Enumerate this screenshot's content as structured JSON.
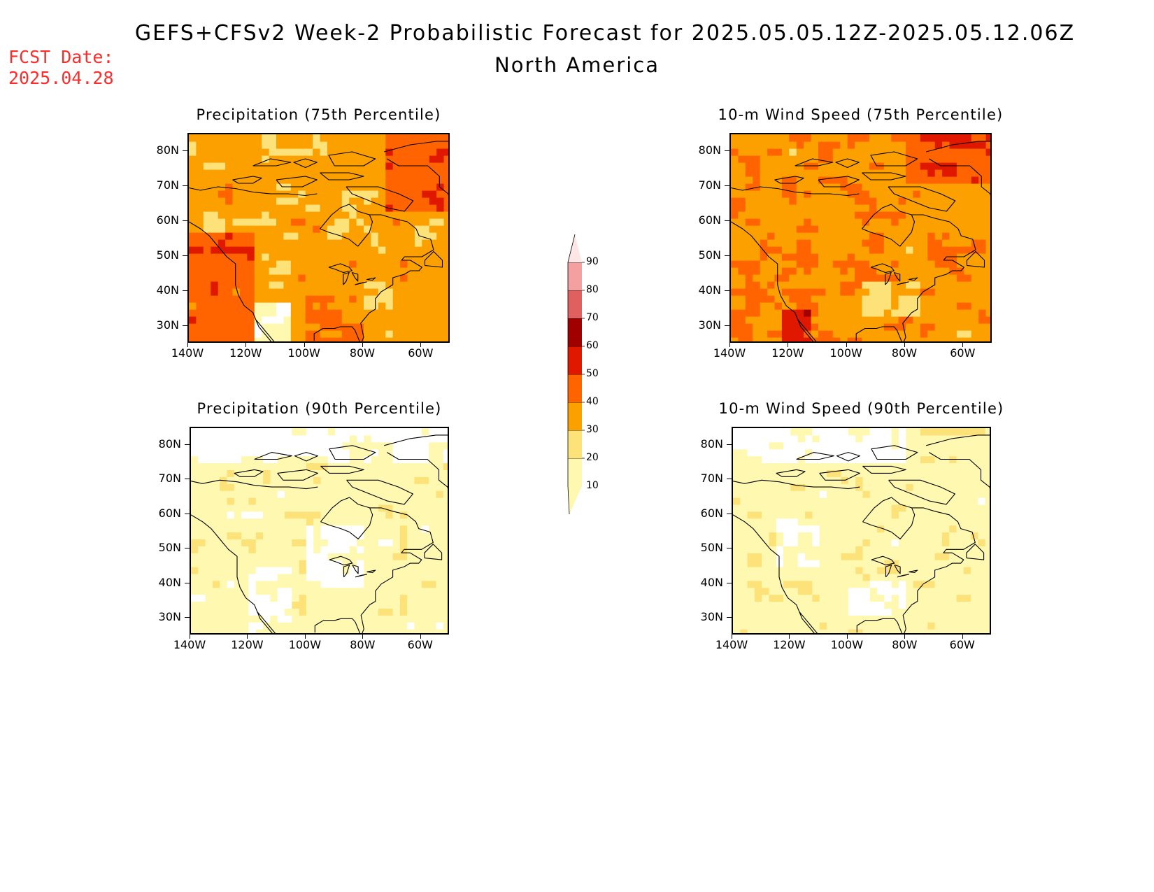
{
  "header": {
    "title": "GEFS+CFSv2 Week-2 Probabilistic Forecast for 2025.05.05.12Z-2025.05.12.06Z",
    "subtitle": "North America",
    "fcst_label": "FCST Date:",
    "fcst_date": "2025.04.28"
  },
  "colors": {
    "levels": [
      "#ffffff",
      "#fff8b0",
      "#fde27a",
      "#fca000",
      "#ff6400",
      "#e01800",
      "#a00000",
      "#e06060",
      "#f4a0a0",
      "#ffe6e6"
    ],
    "coast": "#000000"
  },
  "colorbar": {
    "labels": [
      "10",
      "20",
      "30",
      "40",
      "50",
      "60",
      "70",
      "80",
      "90"
    ]
  },
  "axes": {
    "lat_labels": [
      "30N",
      "40N",
      "50N",
      "60N",
      "70N",
      "80N"
    ],
    "lon_labels": [
      "140W",
      "120W",
      "100W",
      "80W",
      "60W"
    ]
  },
  "panels": [
    {
      "id": "precip75",
      "title": "Precipitation (75th Percentile)",
      "base_level": 2,
      "pattern": "p75"
    },
    {
      "id": "wind75",
      "title": "10-m Wind Speed (75th Percentile)",
      "base_level": 2,
      "pattern": "w75"
    },
    {
      "id": "precip90",
      "title": "Precipitation (90th Percentile)",
      "base_level": 1,
      "pattern": "p90"
    },
    {
      "id": "wind90",
      "title": "10-m Wind Speed (90th Percentile)",
      "base_level": 1,
      "pattern": "w90"
    }
  ]
}
